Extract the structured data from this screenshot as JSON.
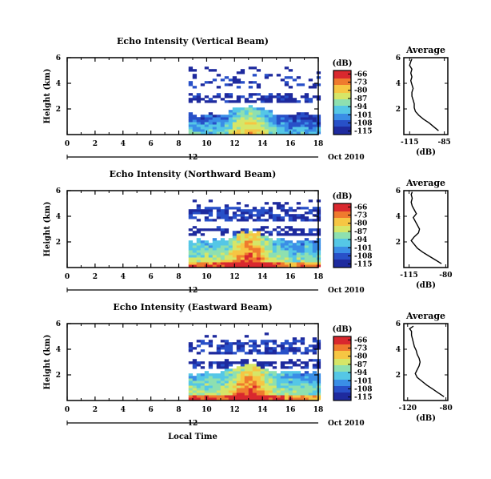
{
  "chart_data": [
    {
      "type": "heatmap",
      "title": "Echo Intensity (Vertical Beam)",
      "ylabel": "Height (km)",
      "xlabel": "",
      "x_ticks": [
        "0",
        "2",
        "4",
        "6",
        "8",
        "10",
        "12",
        "14",
        "16",
        "18"
      ],
      "y_ticks": [
        "2",
        "4",
        "6"
      ],
      "xlim": [
        0,
        18
      ],
      "ylim": [
        0,
        6
      ],
      "date_label": "12",
      "date_suffix": "Oct 2010",
      "colorbar": {
        "unit": "(dB)",
        "ticks": [
          "-66",
          "-73",
          "-80",
          "-87",
          "-94",
          "-101",
          "-108",
          "-115"
        ],
        "range": [
          -118,
          -63
        ]
      },
      "data_start_hour": 8.7,
      "profile": {
        "title": "Average",
        "xlabel": "(dB)",
        "x_ticks": [
          "-115",
          "-85"
        ],
        "xlim": [
          -120,
          -82
        ],
        "y_ticks": [
          "2",
          "4",
          "6"
        ],
        "ylim": [
          0,
          6
        ],
        "heights": [
          0.3,
          0.6,
          0.9,
          1.2,
          1.5,
          1.8,
          2.1,
          2.4,
          2.7,
          3.0,
          3.3,
          3.6,
          3.9,
          4.2,
          4.5,
          4.8,
          5.1,
          5.4,
          5.7,
          5.9
        ],
        "values": [
          -90,
          -94,
          -98,
          -103,
          -107,
          -110,
          -111,
          -111,
          -112,
          -113,
          -113,
          -112,
          -113,
          -114,
          -113,
          -114,
          -113,
          -115,
          -114,
          -113
        ]
      }
    },
    {
      "type": "heatmap",
      "title": "Echo Intensity (Northward Beam)",
      "ylabel": "Height (km)",
      "xlabel": "",
      "x_ticks": [
        "0",
        "2",
        "4",
        "6",
        "8",
        "10",
        "12",
        "14",
        "16",
        "18"
      ],
      "y_ticks": [
        "2",
        "4",
        "6"
      ],
      "xlim": [
        0,
        18
      ],
      "ylim": [
        0,
        6
      ],
      "date_label": "12",
      "date_suffix": "Oct 2010",
      "colorbar": {
        "unit": "(dB)",
        "ticks": [
          "-66",
          "-73",
          "-80",
          "-87",
          "-94",
          "-101",
          "-108",
          "-115"
        ],
        "range": [
          -118,
          -63
        ]
      },
      "data_start_hour": 8.7,
      "profile": {
        "title": "Average",
        "xlabel": "(dB)",
        "x_ticks": [
          "-115",
          "-80"
        ],
        "xlim": [
          -120,
          -78
        ],
        "y_ticks": [
          "2",
          "4",
          "6"
        ],
        "ylim": [
          0,
          6
        ],
        "heights": [
          0.3,
          0.6,
          0.9,
          1.2,
          1.5,
          1.8,
          2.1,
          2.4,
          2.7,
          3.0,
          3.3,
          3.6,
          3.9,
          4.2,
          4.5,
          4.8,
          5.1,
          5.4,
          5.7,
          5.9
        ],
        "values": [
          -84,
          -90,
          -96,
          -102,
          -107,
          -110,
          -113,
          -110,
          -106,
          -105,
          -107,
          -109,
          -111,
          -108,
          -110,
          -112,
          -113,
          -112,
          -113,
          -112
        ]
      }
    },
    {
      "type": "heatmap",
      "title": "Echo Intensity (Eastward Beam)",
      "ylabel": "Height (km)",
      "xlabel": "Local Time",
      "x_ticks": [
        "0",
        "2",
        "4",
        "6",
        "8",
        "10",
        "12",
        "14",
        "16",
        "18"
      ],
      "y_ticks": [
        "2",
        "4",
        "6"
      ],
      "xlim": [
        0,
        18
      ],
      "ylim": [
        0,
        6
      ],
      "date_label": "12",
      "date_suffix": "Oct 2010",
      "colorbar": {
        "unit": "(dB)",
        "ticks": [
          "-66",
          "-73",
          "-80",
          "-87",
          "-94",
          "-101",
          "-108",
          "-115"
        ],
        "range": [
          -118,
          -63
        ]
      },
      "data_start_hour": 8.7,
      "profile": {
        "title": "Average",
        "xlabel": "(dB)",
        "x_ticks": [
          "-120",
          "-80"
        ],
        "xlim": [
          -124,
          -78
        ],
        "y_ticks": [
          "2",
          "4",
          "6"
        ],
        "ylim": [
          0,
          6
        ],
        "heights": [
          0.3,
          0.6,
          0.9,
          1.2,
          1.5,
          1.8,
          2.1,
          2.4,
          2.7,
          3.0,
          3.3,
          3.6,
          3.9,
          4.2,
          4.5,
          4.8,
          5.1,
          5.4,
          5.6,
          5.8
        ],
        "values": [
          -82,
          -88,
          -94,
          -100,
          -105,
          -110,
          -112,
          -110,
          -108,
          -107,
          -108,
          -110,
          -111,
          -113,
          -114,
          -115,
          -116,
          -116,
          -118,
          -114
        ]
      }
    }
  ],
  "colors": [
    "#1e2a9e",
    "#2850c8",
    "#3a8ee6",
    "#55c7e6",
    "#8ee0b0",
    "#d6e668",
    "#f6c643",
    "#ef7a2e",
    "#d9282e"
  ]
}
